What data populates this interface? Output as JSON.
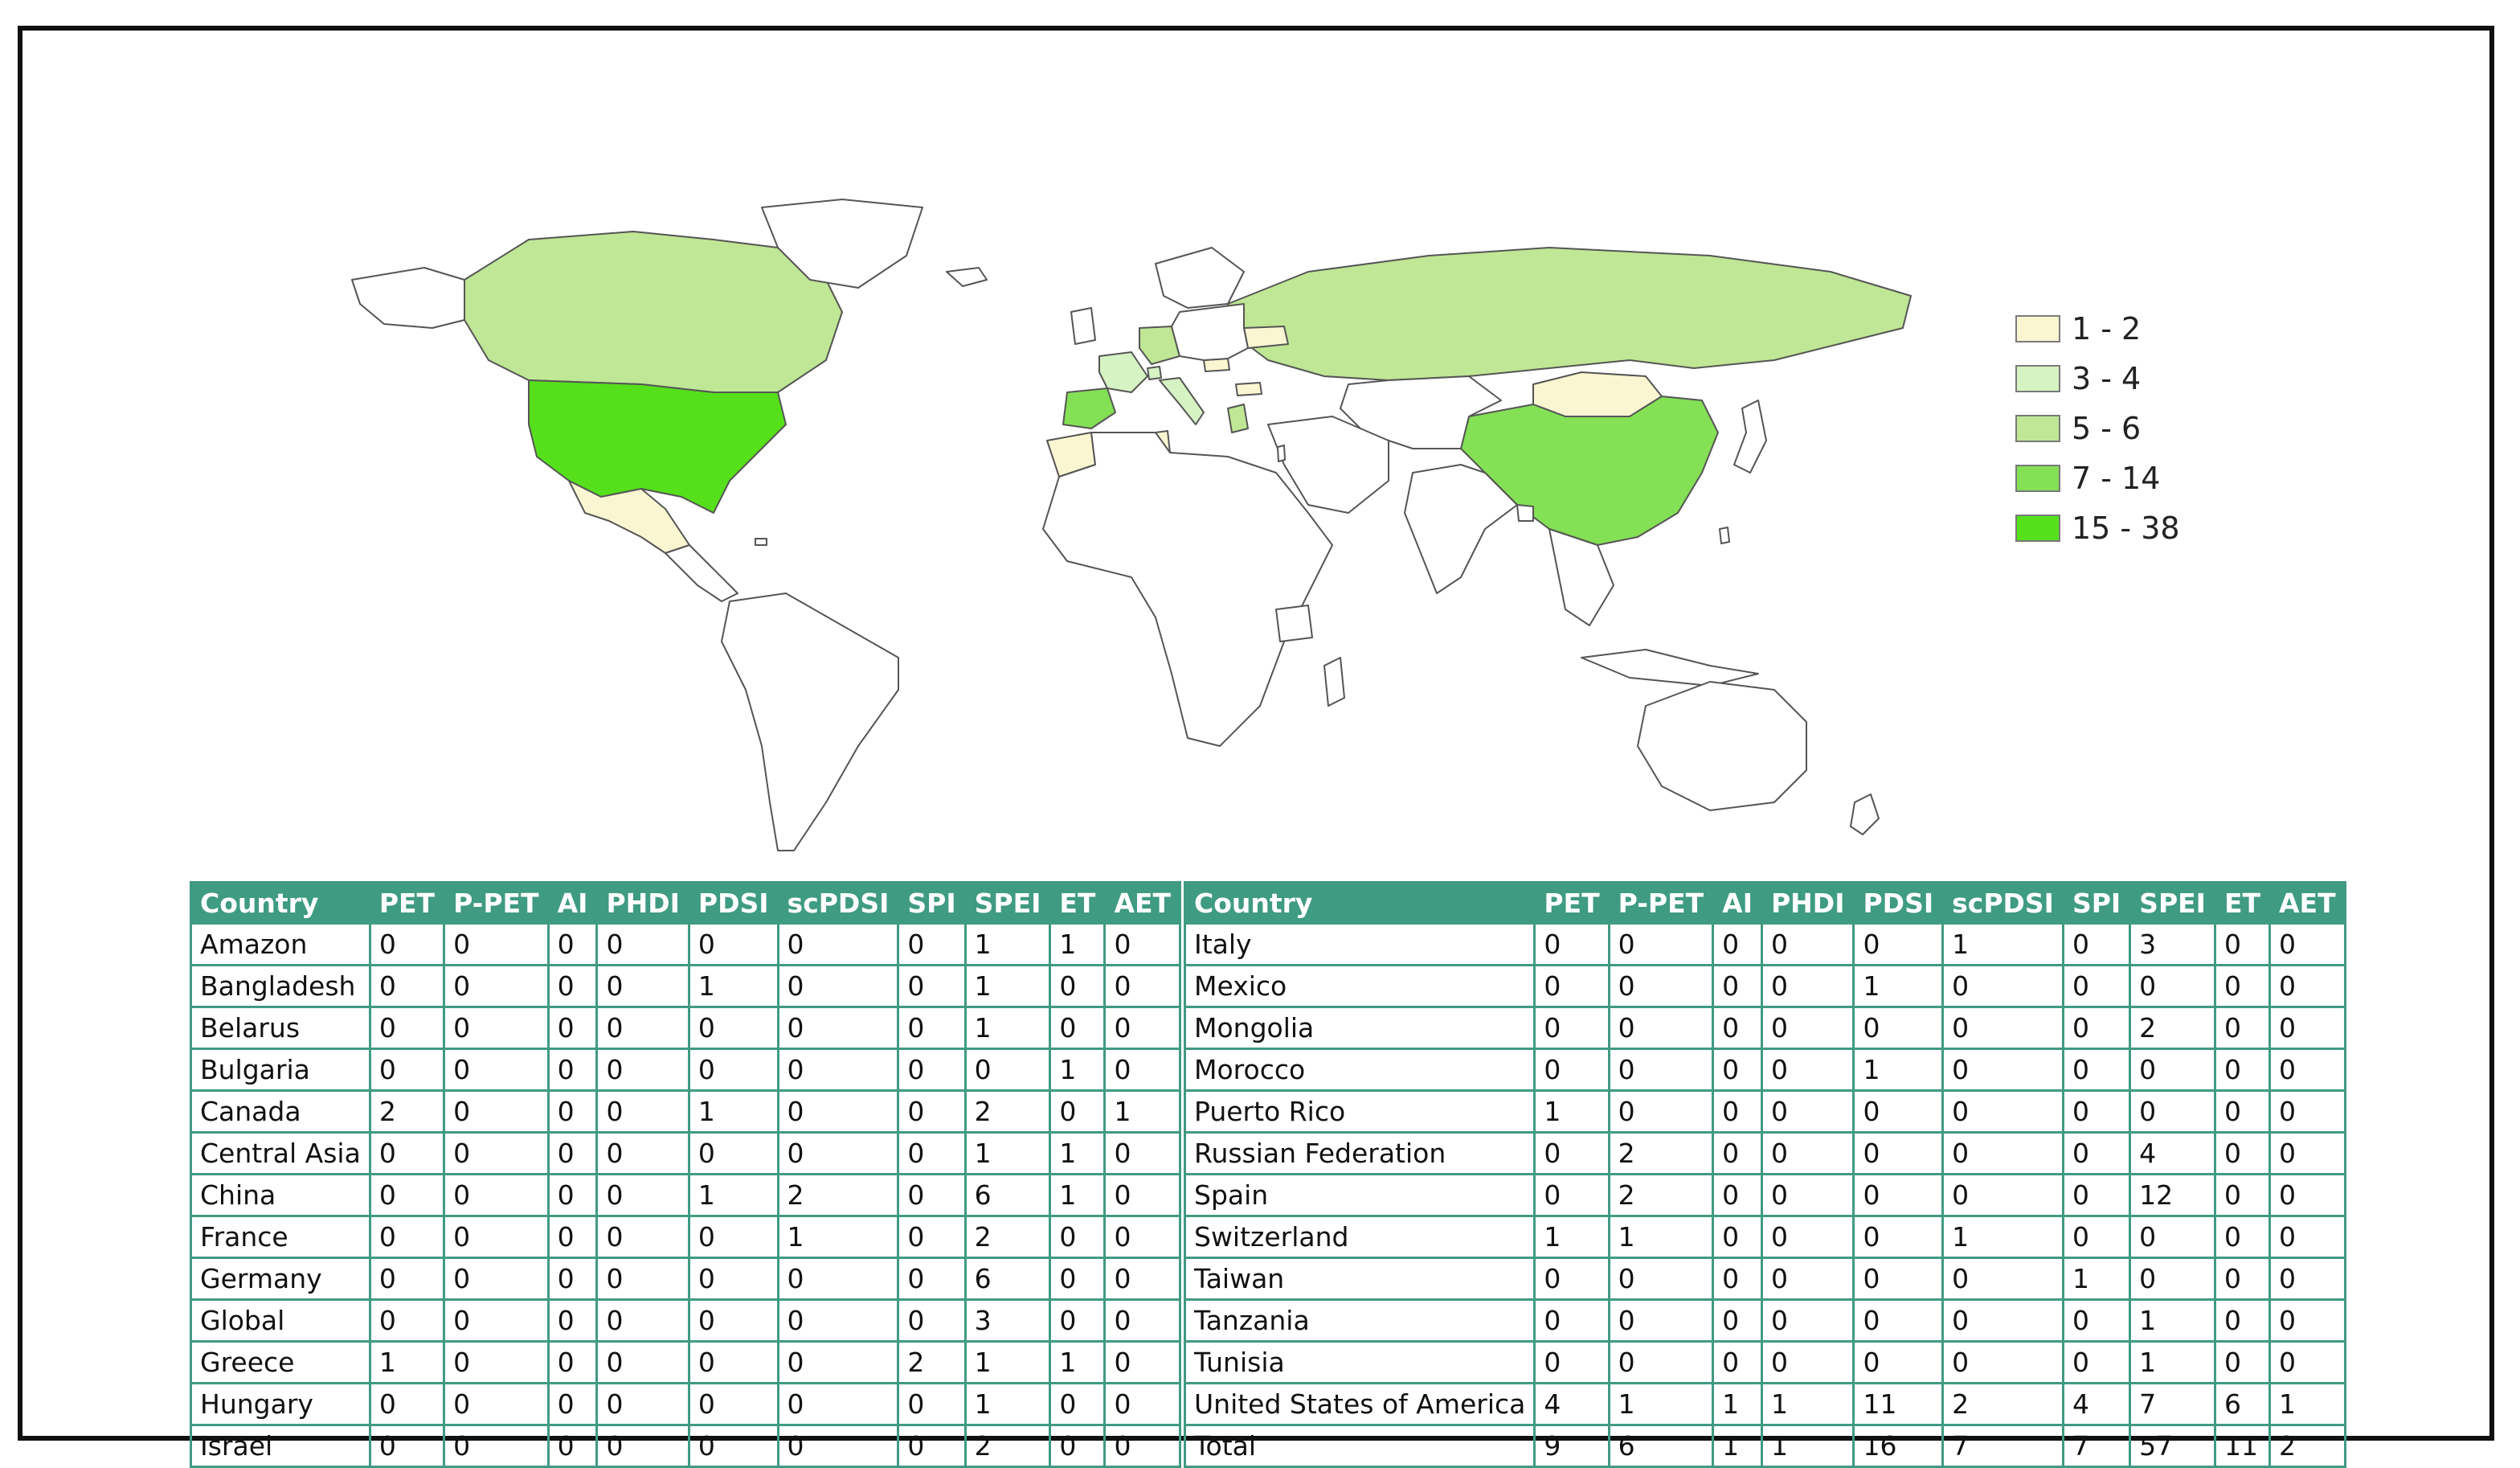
{
  "chart_data": [
    {
      "type": "choropleth-map",
      "legend": {
        "position": "right",
        "items": [
          {
            "label": "1 - 2",
            "color": "#fbf6d2"
          },
          {
            "label": "3 - 4",
            "color": "#d6f3c4"
          },
          {
            "label": "5 - 6",
            "color": "#bfe795"
          },
          {
            "label": "7 - 14",
            "color": "#84e055"
          },
          {
            "label": "15 - 38",
            "color": "#55e01b"
          }
        ]
      },
      "regions": [
        {
          "name": "United States of America",
          "class": "15 - 38"
        },
        {
          "name": "Spain",
          "class": "7 - 14"
        },
        {
          "name": "China",
          "class": "7 - 14"
        },
        {
          "name": "Canada",
          "class": "5 - 6"
        },
        {
          "name": "Russian Federation",
          "class": "5 - 6"
        },
        {
          "name": "Germany",
          "class": "5 - 6"
        },
        {
          "name": "France",
          "class": "3 - 4"
        },
        {
          "name": "Switzerland",
          "class": "3 - 4"
        },
        {
          "name": "Italy",
          "class": "3 - 4"
        },
        {
          "name": "Greece",
          "class": "5 - 6"
        },
        {
          "name": "Mongolia",
          "class": "1 - 2"
        },
        {
          "name": "Mexico",
          "class": "1 - 2"
        },
        {
          "name": "Morocco",
          "class": "1 - 2"
        },
        {
          "name": "Tunisia",
          "class": "1 - 2"
        },
        {
          "name": "Belarus",
          "class": "1 - 2"
        },
        {
          "name": "Bulgaria",
          "class": "1 - 2"
        },
        {
          "name": "Hungary",
          "class": "1 - 2"
        }
      ]
    },
    {
      "type": "table",
      "columns": [
        "Country",
        "PET",
        "P-PET",
        "AI",
        "PHDI",
        "PDSI",
        "scPDSI",
        "SPI",
        "SPEI",
        "ET",
        "AET"
      ],
      "rows": [
        [
          "Amazon",
          "0",
          "0",
          "0",
          "0",
          "0",
          "0",
          "0",
          "1",
          "1",
          "0"
        ],
        [
          "Bangladesh",
          "0",
          "0",
          "0",
          "0",
          "1",
          "0",
          "0",
          "1",
          "0",
          "0"
        ],
        [
          "Belarus",
          "0",
          "0",
          "0",
          "0",
          "0",
          "0",
          "0",
          "1",
          "0",
          "0"
        ],
        [
          "Bulgaria",
          "0",
          "0",
          "0",
          "0",
          "0",
          "0",
          "0",
          "0",
          "1",
          "0"
        ],
        [
          "Canada",
          "2",
          "0",
          "0",
          "0",
          "1",
          "0",
          "0",
          "2",
          "0",
          "1"
        ],
        [
          "Central Asia",
          "0",
          "0",
          "0",
          "0",
          "0",
          "0",
          "0",
          "1",
          "1",
          "0"
        ],
        [
          "China",
          "0",
          "0",
          "0",
          "0",
          "1",
          "2",
          "0",
          "6",
          "1",
          "0"
        ],
        [
          "France",
          "0",
          "0",
          "0",
          "0",
          "0",
          "1",
          "0",
          "2",
          "0",
          "0"
        ],
        [
          "Germany",
          "0",
          "0",
          "0",
          "0",
          "0",
          "0",
          "0",
          "6",
          "0",
          "0"
        ],
        [
          "Global",
          "0",
          "0",
          "0",
          "0",
          "0",
          "0",
          "0",
          "3",
          "0",
          "0"
        ],
        [
          "Greece",
          "1",
          "0",
          "0",
          "0",
          "0",
          "0",
          "2",
          "1",
          "1",
          "0"
        ],
        [
          "Hungary",
          "0",
          "0",
          "0",
          "0",
          "0",
          "0",
          "0",
          "1",
          "0",
          "0"
        ],
        [
          "Israel",
          "0",
          "0",
          "0",
          "0",
          "0",
          "0",
          "0",
          "2",
          "0",
          "0"
        ]
      ]
    },
    {
      "type": "table",
      "columns": [
        "Country",
        "PET",
        "P-PET",
        "AI",
        "PHDI",
        "PDSI",
        "scPDSI",
        "SPI",
        "SPEI",
        "ET",
        "AET"
      ],
      "rows": [
        [
          "Italy",
          "0",
          "0",
          "0",
          "0",
          "0",
          "1",
          "0",
          "3",
          "0",
          "0"
        ],
        [
          "Mexico",
          "0",
          "0",
          "0",
          "0",
          "1",
          "0",
          "0",
          "0",
          "0",
          "0"
        ],
        [
          "Mongolia",
          "0",
          "0",
          "0",
          "0",
          "0",
          "0",
          "0",
          "2",
          "0",
          "0"
        ],
        [
          "Morocco",
          "0",
          "0",
          "0",
          "0",
          "1",
          "0",
          "0",
          "0",
          "0",
          "0"
        ],
        [
          "Puerto Rico",
          "1",
          "0",
          "0",
          "0",
          "0",
          "0",
          "0",
          "0",
          "0",
          "0"
        ],
        [
          "Russian Federation",
          "0",
          "2",
          "0",
          "0",
          "0",
          "0",
          "0",
          "4",
          "0",
          "0"
        ],
        [
          "Spain",
          "0",
          "2",
          "0",
          "0",
          "0",
          "0",
          "0",
          "12",
          "0",
          "0"
        ],
        [
          "Switzerland",
          "1",
          "1",
          "0",
          "0",
          "0",
          "1",
          "0",
          "0",
          "0",
          "0"
        ],
        [
          "Taiwan",
          "0",
          "0",
          "0",
          "0",
          "0",
          "0",
          "1",
          "0",
          "0",
          "0"
        ],
        [
          "Tanzania",
          "0",
          "0",
          "0",
          "0",
          "0",
          "0",
          "0",
          "1",
          "0",
          "0"
        ],
        [
          "Tunisia",
          "0",
          "0",
          "0",
          "0",
          "0",
          "0",
          "0",
          "1",
          "0",
          "0"
        ],
        [
          "United States of America",
          "4",
          "1",
          "1",
          "1",
          "11",
          "2",
          "4",
          "7",
          "6",
          "1"
        ],
        [
          "Total",
          "9",
          "6",
          "1",
          "1",
          "16",
          "7",
          "7",
          "57",
          "11",
          "2"
        ]
      ]
    }
  ]
}
